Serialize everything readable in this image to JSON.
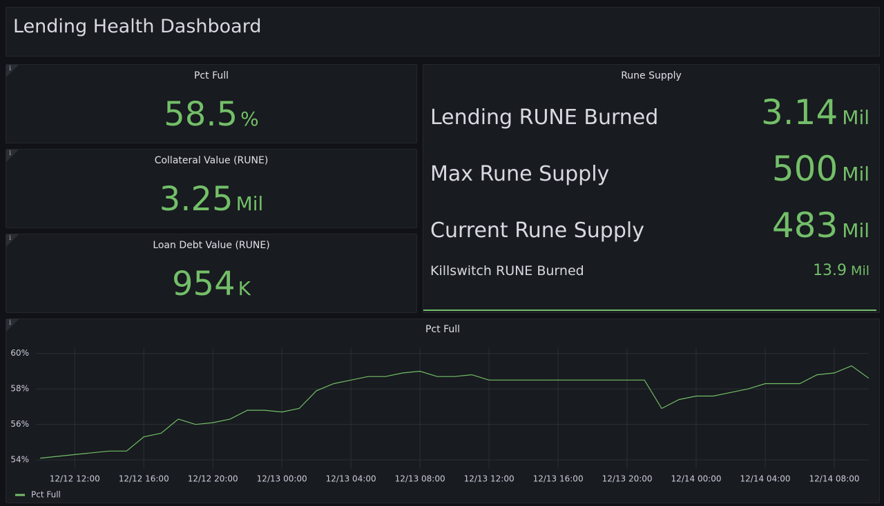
{
  "header": {
    "title": "Lending Health Dashboard"
  },
  "stats": [
    {
      "title": "Pct Full",
      "value": 58.5,
      "unit": "%"
    },
    {
      "title": "Collateral Value (RUNE)",
      "value": 3.25,
      "unit": "Mil"
    },
    {
      "title": "Loan Debt Value (RUNE)",
      "value": 954,
      "unit": "K"
    }
  ],
  "rune_supply": {
    "title": "Rune Supply",
    "rows": [
      {
        "label": "Lending RUNE Burned",
        "value": 3.14,
        "unit": "Mil"
      },
      {
        "label": "Max Rune Supply",
        "value": 500,
        "unit": "Mil"
      },
      {
        "label": "Current Rune Supply",
        "value": 483,
        "unit": "Mil"
      },
      {
        "label": "Killswitch RUNE Burned",
        "value": 13.9,
        "unit": "Mil"
      }
    ]
  },
  "chart_data": {
    "type": "line",
    "title": "Pct Full",
    "x": [
      "12/12 10:00",
      "12/12 11:00",
      "12/12 12:00",
      "12/12 13:00",
      "12/12 14:00",
      "12/12 15:00",
      "12/12 16:00",
      "12/12 17:00",
      "12/12 18:00",
      "12/12 19:00",
      "12/12 20:00",
      "12/12 21:00",
      "12/12 22:00",
      "12/12 23:00",
      "12/13 00:00",
      "12/13 01:00",
      "12/13 02:00",
      "12/13 03:00",
      "12/13 04:00",
      "12/13 05:00",
      "12/13 06:00",
      "12/13 07:00",
      "12/13 08:00",
      "12/13 09:00",
      "12/13 10:00",
      "12/13 11:00",
      "12/13 12:00",
      "12/13 13:00",
      "12/13 14:00",
      "12/13 15:00",
      "12/13 16:00",
      "12/13 17:00",
      "12/13 18:00",
      "12/13 19:00",
      "12/13 20:00",
      "12/13 21:00",
      "12/13 22:00",
      "12/13 23:00",
      "12/14 00:00",
      "12/14 01:00",
      "12/14 02:00",
      "12/14 03:00",
      "12/14 04:00",
      "12/14 05:00",
      "12/14 06:00",
      "12/14 07:00",
      "12/14 08:00",
      "12/14 09:00",
      "12/14 10:00"
    ],
    "series": [
      {
        "name": "Pct Full",
        "color": "#73bf69",
        "values": [
          54.1,
          54.2,
          54.3,
          54.4,
          54.5,
          54.5,
          55.3,
          55.5,
          56.3,
          56.0,
          56.1,
          56.3,
          56.8,
          56.8,
          56.7,
          56.9,
          57.9,
          58.3,
          58.5,
          58.7,
          58.7,
          58.9,
          59.0,
          58.7,
          58.7,
          58.8,
          58.5,
          58.5,
          58.5,
          58.5,
          58.5,
          58.5,
          58.5,
          58.5,
          58.5,
          58.5,
          56.9,
          57.4,
          57.6,
          57.6,
          57.8,
          58.0,
          58.3,
          58.3,
          58.3,
          58.8,
          58.9,
          59.3,
          58.6
        ]
      }
    ],
    "xlim": [
      "12/12 09:45",
      "12/14 10:00"
    ],
    "xticks": [
      "12/12 12:00",
      "12/12 16:00",
      "12/12 20:00",
      "12/13 00:00",
      "12/13 04:00",
      "12/13 08:00",
      "12/13 12:00",
      "12/13 16:00",
      "12/13 20:00",
      "12/14 00:00",
      "12/14 04:00",
      "12/14 08:00"
    ],
    "ylim": [
      53.5,
      60.3
    ],
    "yticks": [
      {
        "value": 54,
        "label": "54%"
      },
      {
        "value": 56,
        "label": "56%"
      },
      {
        "value": 58,
        "label": "58%"
      },
      {
        "value": 60,
        "label": "60%"
      }
    ],
    "grid": true
  }
}
